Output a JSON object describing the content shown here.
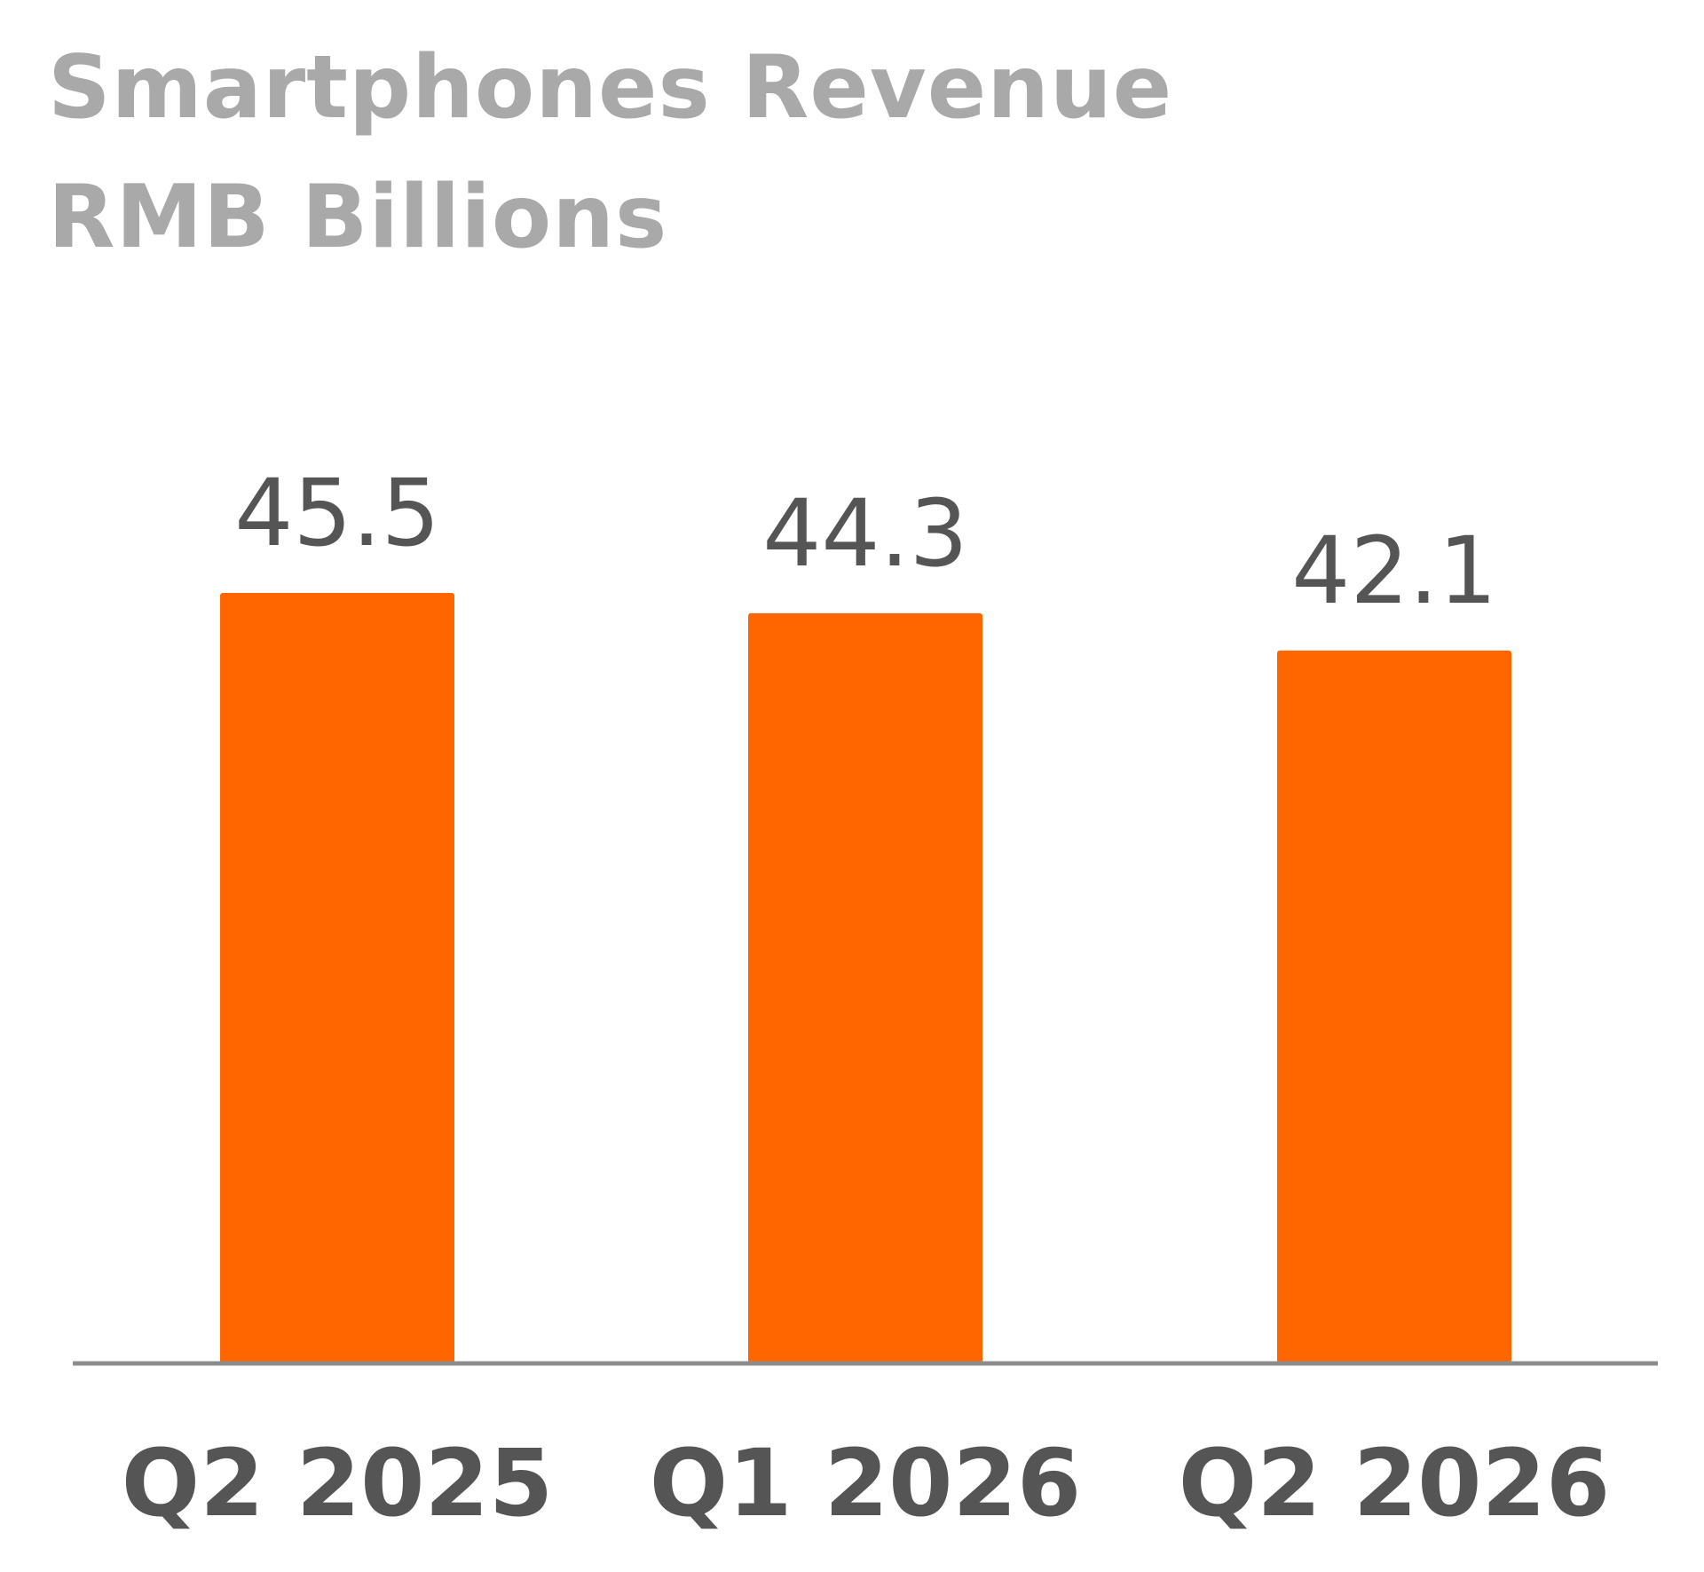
{
  "title": {
    "line1": "Smartphones Revenue",
    "line2": "RMB Billions"
  },
  "colors": {
    "bar": "#ff6600",
    "baseline": "#8c8c8c",
    "title": "#a9a9a9",
    "label": "#555555"
  },
  "chart_data": {
    "type": "bar",
    "title": "Smartphones Revenue",
    "subtitle": "RMB Billions",
    "categories": [
      "Q2 2025",
      "Q1 2026",
      "Q2 2026"
    ],
    "values": [
      45.5,
      44.3,
      42.1
    ],
    "value_labels": [
      "45.5",
      "44.3",
      "42.1"
    ],
    "xlabel": "",
    "ylabel": "",
    "ylim": [
      0,
      45.5
    ],
    "grid": false,
    "legend": "none",
    "data_labels": true
  }
}
